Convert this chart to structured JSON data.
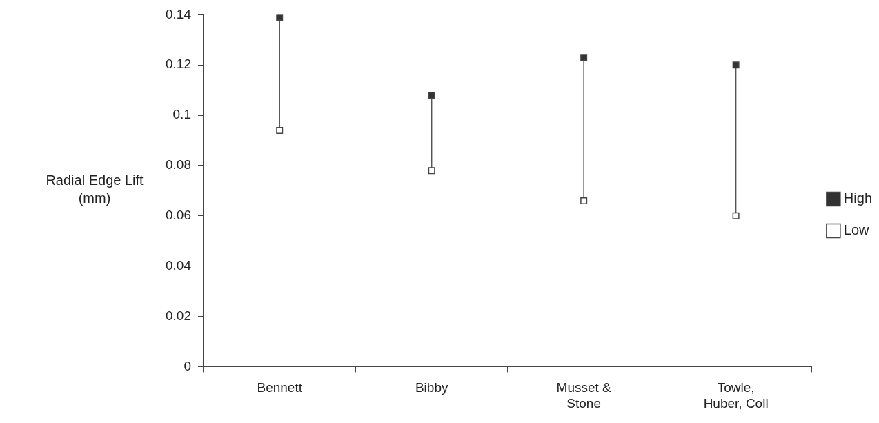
{
  "chart_data": {
    "type": "scatter",
    "ylabel": "Radial Edge Lift\n(mm)",
    "categories": [
      "Bennett",
      "Bibby",
      "Musset &\nStone",
      "Towle,\nHuber, Coll"
    ],
    "series": [
      {
        "name": "High",
        "color": "#333333",
        "values": [
          0.139,
          0.108,
          0.123,
          0.12
        ]
      },
      {
        "name": "Low",
        "color": "#ffffff",
        "values": [
          0.094,
          0.078,
          0.066,
          0.06
        ]
      }
    ],
    "ylim": [
      0,
      0.14
    ],
    "yticks": [
      0,
      0.02,
      0.04,
      0.06,
      0.08,
      0.1,
      0.12,
      0.14
    ],
    "marker": "square",
    "grid": false,
    "legend": "right"
  }
}
